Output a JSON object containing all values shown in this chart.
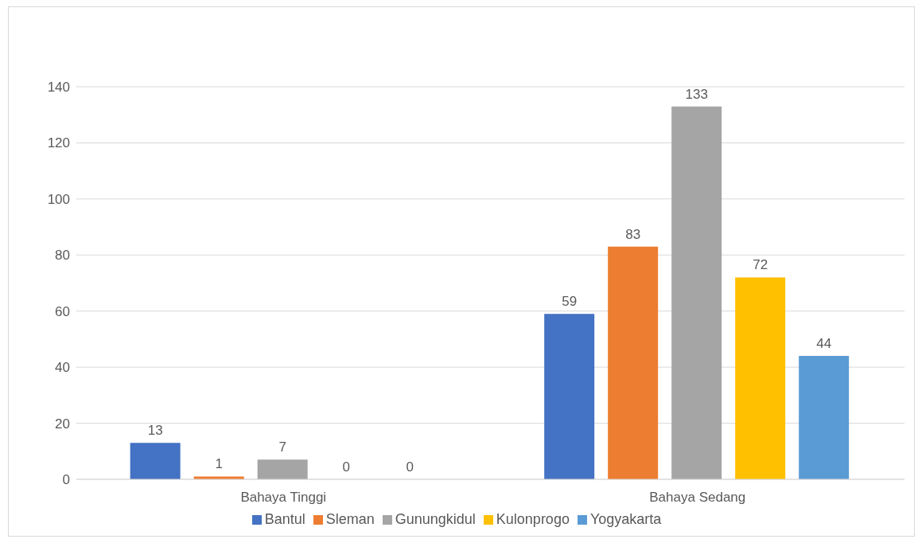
{
  "chart_data": {
    "type": "bar",
    "categories": [
      "Bahaya Tinggi",
      "Bahaya Sedang"
    ],
    "series": [
      {
        "name": "Bantul",
        "color": "#4472c4",
        "values": [
          13,
          59
        ]
      },
      {
        "name": "Sleman",
        "color": "#ed7d31",
        "values": [
          1,
          83
        ]
      },
      {
        "name": "Gunungkidul",
        "color": "#a5a5a5",
        "values": [
          7,
          133
        ]
      },
      {
        "name": "Kulonprogo",
        "color": "#ffc000",
        "values": [
          0,
          72
        ]
      },
      {
        "name": "Yogyakarta",
        "color": "#5b9bd5",
        "values": [
          0,
          44
        ]
      }
    ],
    "ylim": [
      0,
      140
    ],
    "yticks": [
      0,
      20,
      40,
      60,
      80,
      100,
      120,
      140
    ],
    "grid": "y",
    "legend": "bottom",
    "data_labels": true
  }
}
